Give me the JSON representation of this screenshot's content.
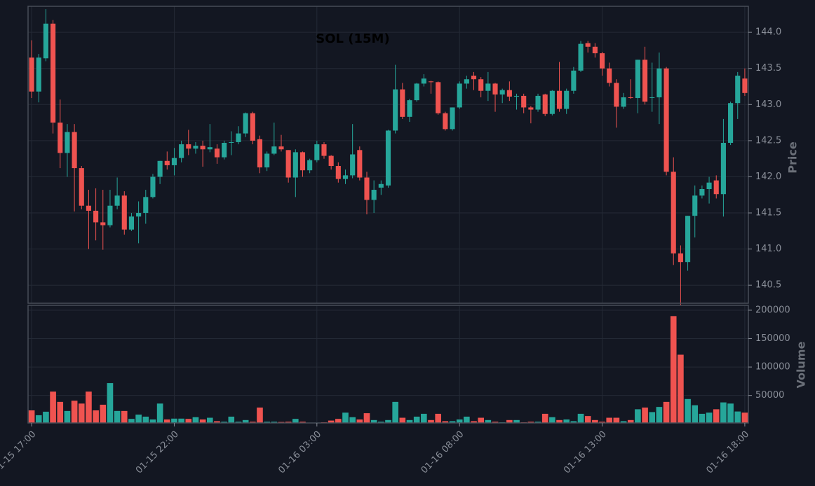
{
  "chart_data": {
    "type": "candlestick",
    "title": "SOL (15M)",
    "y_label": "Price",
    "up_color": "#26a69a",
    "down_color": "#ef5350",
    "grid": true,
    "xlim": [
      -0.5,
      100.5
    ],
    "xticks": [
      {
        "value": 0,
        "label": "01-15 17:00"
      },
      {
        "value": 20,
        "label": "01-15 22:00"
      },
      {
        "value": 40,
        "label": "01-16 03:00"
      },
      {
        "value": 60,
        "label": "01-16 08:00"
      },
      {
        "value": 80,
        "label": "01-16 13:00"
      },
      {
        "value": 100,
        "label": "01-16 18:00"
      }
    ],
    "ylim": [
      140.25,
      144.36
    ],
    "yticks": [
      140.5,
      {
        "value": 141,
        "label": "141.0"
      },
      141.5,
      {
        "value": 142,
        "label": "142.0"
      },
      142.5,
      {
        "value": 143,
        "label": "143.0"
      },
      143.5,
      {
        "value": 144,
        "label": "144.0"
      }
    ],
    "open": [
      143.65,
      143.18,
      143.64,
      144.12,
      142.75,
      142.33,
      142.62,
      142.12,
      141.6,
      141.53,
      141.37,
      141.33,
      141.6,
      141.74,
      141.27,
      141.45,
      141.5,
      141.72,
      142.0,
      142.22,
      142.16,
      142.26,
      142.45,
      142.39,
      142.43,
      142.38,
      142.39,
      142.27,
      142.47,
      142.48,
      142.6,
      142.88,
      142.52,
      142.13,
      142.32,
      142.42,
      142.37,
      141.99,
      142.34,
      142.09,
      142.23,
      142.45,
      142.29,
      142.15,
      141.97,
      142.02,
      142.37,
      141.99,
      141.68,
      141.85,
      141.88,
      142.64,
      143.21,
      142.83,
      143.06,
      143.29,
      143.32,
      143.31,
      142.88,
      142.66,
      142.96,
      143.29,
      143.4,
      143.35,
      143.19,
      143.29,
      143.14,
      143.2,
      143.11,
      143.12,
      142.96,
      142.93,
      143.14,
      142.87,
      143.19,
      142.94,
      143.19,
      143.47,
      143.85,
      143.8,
      143.71,
      143.5,
      143.3,
      142.97,
      143.1,
      143.09,
      143.62,
      143.09,
      143.1,
      143.5,
      142.07,
      140.94,
      140.82,
      141.46,
      141.74,
      141.83,
      141.95,
      141.76,
      142.47,
      143.02,
      143.36
    ],
    "high": [
      143.89,
      143.7,
      144.32,
      144.17,
      143.07,
      142.73,
      142.73,
      142.15,
      141.82,
      141.84,
      141.82,
      141.82,
      141.99,
      141.8,
      141.5,
      141.66,
      141.82,
      142.04,
      142.22,
      142.35,
      142.4,
      142.5,
      142.65,
      142.48,
      142.5,
      142.73,
      142.45,
      142.5,
      142.63,
      142.7,
      142.89,
      142.9,
      142.57,
      142.35,
      142.75,
      142.58,
      142.37,
      142.38,
      142.35,
      142.25,
      142.5,
      142.48,
      142.3,
      142.2,
      142.1,
      142.73,
      142.42,
      142.07,
      141.95,
      141.95,
      142.65,
      143.55,
      143.3,
      143.08,
      143.3,
      143.42,
      143.33,
      143.32,
      142.9,
      142.96,
      143.32,
      143.4,
      143.45,
      143.38,
      143.45,
      143.3,
      143.22,
      143.32,
      143.15,
      143.15,
      142.98,
      143.15,
      143.15,
      143.2,
      143.59,
      143.22,
      143.52,
      143.88,
      143.88,
      143.85,
      143.73,
      143.58,
      143.35,
      143.16,
      143.35,
      143.62,
      143.8,
      143.58,
      143.72,
      143.52,
      142.27,
      141.05,
      141.46,
      141.88,
      141.88,
      142.0,
      142.02,
      142.8,
      143.04,
      143.45,
      143.5
    ],
    "low": [
      143.09,
      143.03,
      143.6,
      142.6,
      142.12,
      142.0,
      141.52,
      141.55,
      141.0,
      141.12,
      140.99,
      141.3,
      141.55,
      141.2,
      141.25,
      141.08,
      141.35,
      141.7,
      141.9,
      142.1,
      142.02,
      142.2,
      142.3,
      142.32,
      142.14,
      142.34,
      142.18,
      142.24,
      142.3,
      142.45,
      142.55,
      142.45,
      142.05,
      142.08,
      142.3,
      142.35,
      141.92,
      141.72,
      142.0,
      142.05,
      142.2,
      142.25,
      142.1,
      141.92,
      141.9,
      141.98,
      141.95,
      141.48,
      141.5,
      141.75,
      141.85,
      142.6,
      142.8,
      142.76,
      143.04,
      143.25,
      143.15,
      142.86,
      142.64,
      142.64,
      142.94,
      143.22,
      143.2,
      143.1,
      143.05,
      142.9,
      143.02,
      143.05,
      142.93,
      142.88,
      142.74,
      142.9,
      142.84,
      142.85,
      142.9,
      142.87,
      143.15,
      143.45,
      143.72,
      143.65,
      143.4,
      143.25,
      142.68,
      142.94,
      143.08,
      142.88,
      143.0,
      142.9,
      142.73,
      142.02,
      140.78,
      140.22,
      140.7,
      141.16,
      141.7,
      141.63,
      141.7,
      141.45,
      142.44,
      142.8,
      143.12
    ],
    "close": [
      143.18,
      143.65,
      144.12,
      142.75,
      142.33,
      142.62,
      142.12,
      141.6,
      141.53,
      141.37,
      141.33,
      141.6,
      141.74,
      141.27,
      141.45,
      141.5,
      141.72,
      142.0,
      142.22,
      142.16,
      142.26,
      142.45,
      142.39,
      142.43,
      142.38,
      142.41,
      142.27,
      142.47,
      142.48,
      142.6,
      142.88,
      142.5,
      142.13,
      142.32,
      142.42,
      142.38,
      141.99,
      142.34,
      142.09,
      142.23,
      142.45,
      142.29,
      142.15,
      141.97,
      142.02,
      142.31,
      141.99,
      141.68,
      141.82,
      141.9,
      142.64,
      143.21,
      142.83,
      143.06,
      143.29,
      143.36,
      143.31,
      142.88,
      142.66,
      142.96,
      143.29,
      143.35,
      143.35,
      143.19,
      143.29,
      143.14,
      143.2,
      143.11,
      143.12,
      142.96,
      142.93,
      143.12,
      142.87,
      143.19,
      142.94,
      143.19,
      143.47,
      143.84,
      143.8,
      143.71,
      143.5,
      143.3,
      142.97,
      143.1,
      143.09,
      143.62,
      143.04,
      143.1,
      143.5,
      142.07,
      140.94,
      140.82,
      141.46,
      141.74,
      141.83,
      141.92,
      141.76,
      142.47,
      143.02,
      143.4,
      143.16
    ],
    "volume": {
      "label": "Volume",
      "ylim": [
        1500,
        208600
      ],
      "yticks": [
        50000,
        100000,
        150000,
        200000
      ],
      "values": [
        24000,
        15500,
        21700,
        57000,
        39000,
        23000,
        41000,
        36000,
        57000,
        24000,
        34000,
        72000,
        23000,
        23000,
        9000,
        16500,
        13000,
        8000,
        36000,
        8000,
        9500,
        9500,
        9000,
        12000,
        8000,
        11000,
        5000,
        4000,
        13000,
        4000,
        7000,
        4000,
        29000,
        4000,
        4000,
        3500,
        4000,
        9000,
        4000,
        2500,
        2500,
        3000,
        6000,
        9000,
        20000,
        12000,
        8000,
        19000,
        7000,
        4000,
        7000,
        39000,
        11000,
        7000,
        13000,
        18000,
        7000,
        18000,
        5000,
        5000,
        8000,
        13000,
        5000,
        11000,
        7000,
        4000,
        3000,
        7000,
        7000,
        3000,
        4000,
        4000,
        18000,
        12000,
        7000,
        8000,
        5000,
        18000,
        14000,
        7000,
        4000,
        11000,
        11000,
        5000,
        7000,
        26000,
        29000,
        21000,
        30000,
        39000,
        190000,
        122000,
        44000,
        33000,
        18000,
        20000,
        26000,
        38000,
        36000,
        22000,
        20000
      ]
    }
  }
}
